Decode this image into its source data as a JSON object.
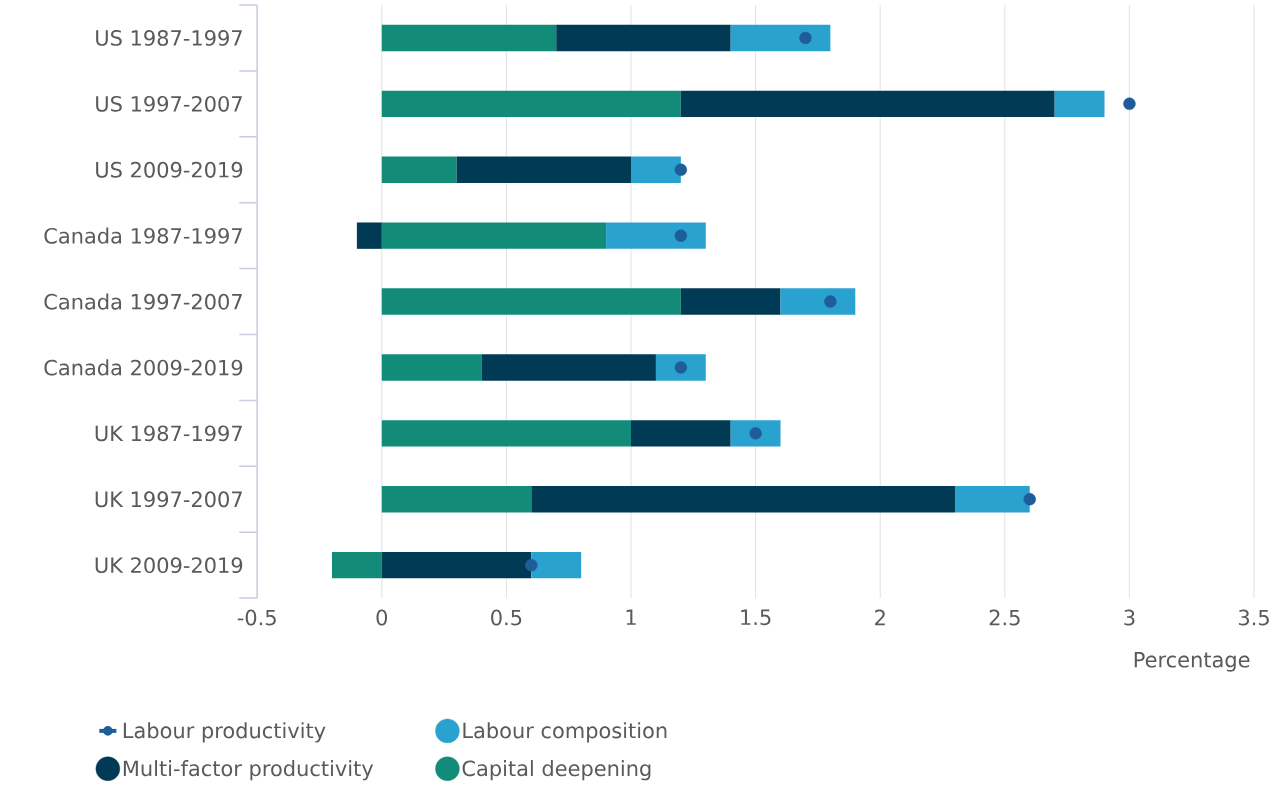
{
  "chart_data": {
    "type": "bar",
    "orientation": "horizontal",
    "stacked": true,
    "categories": [
      "US 1987-1997",
      "US 1997-2007",
      "US 2009-2019",
      "Canada 1987-1997",
      "Canada 1997-2007",
      "Canada 2009-2019",
      "UK 1987-1997",
      "UK 1997-2007",
      "UK 2009-2019"
    ],
    "xlabel": "Percentage",
    "xlim": [
      -0.5,
      3.5
    ],
    "xticks": [
      -0.5,
      0,
      0.5,
      1,
      1.5,
      2,
      2.5,
      3,
      3.5
    ],
    "grid": "x",
    "legend": "bottom",
    "series": [
      {
        "name": "Capital deepening",
        "color": "#128c78",
        "values": [
          0.7,
          1.2,
          0.3,
          0.9,
          1.2,
          0.4,
          1.0,
          0.6,
          -0.2
        ]
      },
      {
        "name": "Multi-factor productivity",
        "color": "#003a54",
        "values": [
          0.7,
          1.5,
          0.7,
          -0.1,
          0.4,
          0.7,
          0.4,
          1.7,
          0.6
        ]
      },
      {
        "name": "Labour composition",
        "color": "#29a2d0",
        "values": [
          0.4,
          0.2,
          0.2,
          0.4,
          0.3,
          0.2,
          0.2,
          0.3,
          0.2
        ]
      },
      {
        "name": "Labour productivity",
        "type": "scatter",
        "marker": "circle",
        "color": "#1f5d99",
        "values": [
          1.7,
          3.0,
          1.2,
          1.2,
          1.8,
          1.2,
          1.5,
          2.6,
          0.6
        ]
      }
    ]
  }
}
